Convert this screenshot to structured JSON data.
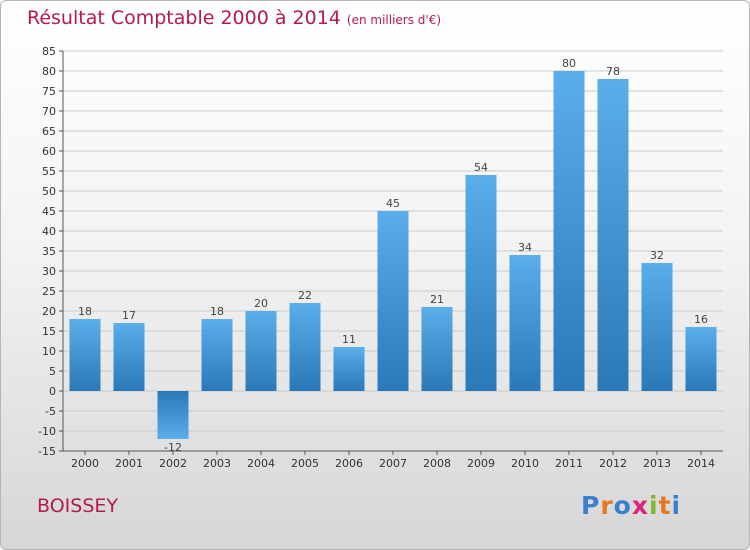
{
  "header": {
    "title": "Résultat Comptable 2000 à 2014",
    "subtitle": "(en milliers d'€)"
  },
  "footer": {
    "place": "BOISSEY",
    "brand": "Proxiti"
  },
  "colors": {
    "title": "#b21c4a",
    "bar_top": "#5aaeea",
    "bar_bottom": "#2a78b8",
    "grid": "#cccccc"
  },
  "chart_data": {
    "type": "bar",
    "title": "Résultat Comptable 2000 à 2014",
    "subtitle": "(en milliers d'€)",
    "categories": [
      "2000",
      "2001",
      "2002",
      "2003",
      "2004",
      "2005",
      "2006",
      "2007",
      "2008",
      "2009",
      "2010",
      "2011",
      "2012",
      "2013",
      "2014"
    ],
    "values": [
      18,
      17,
      -12,
      18,
      20,
      22,
      11,
      45,
      21,
      54,
      34,
      80,
      78,
      32,
      16
    ],
    "data_labels": [
      "18",
      "17",
      "-12",
      "18",
      "20",
      "22",
      "11",
      "45",
      "21",
      "54",
      "34",
      "80",
      "78",
      "32",
      "16"
    ],
    "ylim": [
      -15,
      85
    ],
    "yticks": [
      -15,
      -10,
      -5,
      0,
      5,
      10,
      15,
      20,
      25,
      30,
      35,
      40,
      45,
      50,
      55,
      60,
      65,
      70,
      75,
      80,
      85
    ],
    "grid": true,
    "legend": "none"
  }
}
